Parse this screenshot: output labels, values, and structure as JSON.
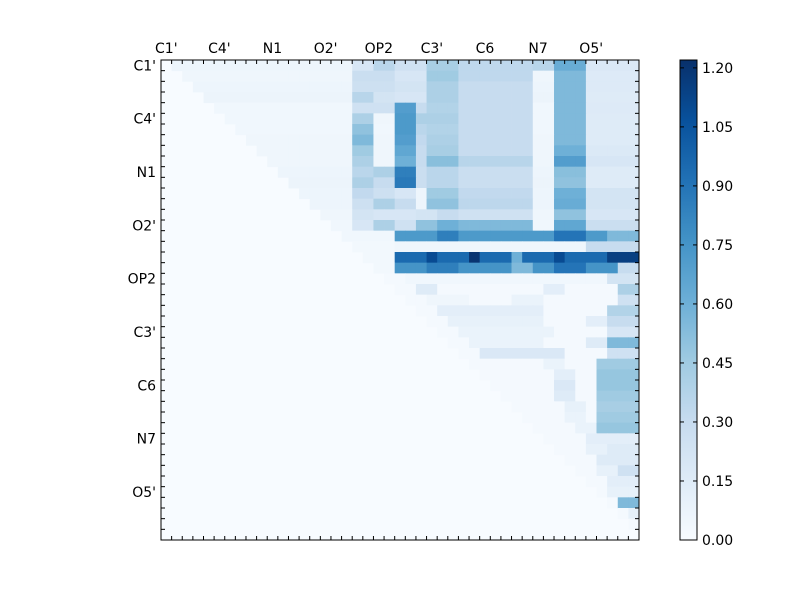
{
  "chart_data": {
    "type": "heatmap",
    "title": "",
    "xlabel": "",
    "ylabel": "",
    "n": 45,
    "x_ticklabels": [
      "C1'",
      "C4'",
      "N1",
      "O2'",
      "OP2",
      "C3'",
      "C6",
      "N7",
      "O5'"
    ],
    "y_ticklabels": [
      "C1'",
      "C4'",
      "N1",
      "O2'",
      "OP2",
      "C3'",
      "C6",
      "N7",
      "O5'"
    ],
    "tick_index_positions": [
      0.5,
      5.5,
      10.5,
      15.5,
      20.5,
      25.5,
      30.5,
      35.5,
      40.5
    ],
    "upper_triangle_only": true,
    "colormap": "Blues",
    "colormap_stops": [
      "#f7fbff",
      "#deebf7",
      "#c6dbef",
      "#9ecae1",
      "#6baed6",
      "#4292c6",
      "#2171b5",
      "#08519c",
      "#08306b"
    ],
    "vmin": 0.0,
    "vmax": 1.22,
    "colorbar": {
      "ticks": [
        0.0,
        0.15,
        0.3,
        0.45,
        0.6,
        0.75,
        0.9,
        1.05,
        1.2
      ],
      "ticklabels": [
        "0.00",
        "0.15",
        "0.30",
        "0.45",
        "0.60",
        "0.75",
        "0.90",
        "1.05",
        "1.20"
      ]
    },
    "row_profiles": [
      {
        "row": 0,
        "base": 0.06,
        "bands": [
          [
            18,
            20,
            0.2
          ],
          [
            20,
            22,
            0.35
          ],
          [
            22,
            25,
            0.25
          ],
          [
            25,
            28,
            0.42
          ],
          [
            28,
            35,
            0.33
          ],
          [
            35,
            37,
            0.36
          ],
          [
            37,
            40,
            0.62
          ],
          [
            40,
            45,
            0.18
          ]
        ]
      },
      {
        "row": 1,
        "base": 0.05,
        "bands": [
          [
            18,
            22,
            0.28
          ],
          [
            22,
            25,
            0.2
          ],
          [
            25,
            28,
            0.45
          ],
          [
            28,
            35,
            0.33
          ],
          [
            37,
            40,
            0.55
          ],
          [
            40,
            45,
            0.16
          ]
        ]
      },
      {
        "row": 2,
        "base": 0.06,
        "bands": [
          [
            18,
            22,
            0.26
          ],
          [
            22,
            25,
            0.22
          ],
          [
            25,
            28,
            0.4
          ],
          [
            28,
            35,
            0.3
          ],
          [
            37,
            40,
            0.55
          ],
          [
            40,
            45,
            0.16
          ]
        ]
      },
      {
        "row": 3,
        "base": 0.07,
        "bands": [
          [
            18,
            20,
            0.36
          ],
          [
            20,
            22,
            0.22
          ],
          [
            22,
            25,
            0.2
          ],
          [
            25,
            28,
            0.4
          ],
          [
            28,
            35,
            0.3
          ],
          [
            37,
            40,
            0.55
          ],
          [
            40,
            45,
            0.15
          ]
        ]
      },
      {
        "row": 4,
        "base": 0.04,
        "bands": [
          [
            18,
            22,
            0.25
          ],
          [
            22,
            24,
            0.7
          ],
          [
            24,
            25,
            0.3
          ],
          [
            25,
            28,
            0.38
          ],
          [
            28,
            35,
            0.3
          ],
          [
            37,
            40,
            0.55
          ],
          [
            40,
            45,
            0.16
          ]
        ]
      },
      {
        "row": 5,
        "base": 0.04,
        "bands": [
          [
            18,
            20,
            0.4
          ],
          [
            20,
            22,
            0.05
          ],
          [
            22,
            24,
            0.72
          ],
          [
            24,
            25,
            0.4
          ],
          [
            25,
            28,
            0.4
          ],
          [
            28,
            35,
            0.3
          ],
          [
            37,
            40,
            0.55
          ],
          [
            40,
            45,
            0.15
          ]
        ]
      },
      {
        "row": 6,
        "base": 0.04,
        "bands": [
          [
            18,
            20,
            0.5
          ],
          [
            22,
            24,
            0.72
          ],
          [
            24,
            25,
            0.35
          ],
          [
            25,
            28,
            0.38
          ],
          [
            28,
            35,
            0.3
          ],
          [
            37,
            40,
            0.55
          ],
          [
            40,
            45,
            0.15
          ]
        ]
      },
      {
        "row": 7,
        "base": 0.05,
        "bands": [
          [
            18,
            20,
            0.55
          ],
          [
            22,
            24,
            0.7
          ],
          [
            24,
            25,
            0.32
          ],
          [
            25,
            28,
            0.4
          ],
          [
            28,
            35,
            0.3
          ],
          [
            37,
            40,
            0.55
          ],
          [
            40,
            45,
            0.15
          ]
        ]
      },
      {
        "row": 8,
        "base": 0.05,
        "bands": [
          [
            18,
            20,
            0.45
          ],
          [
            22,
            24,
            0.65
          ],
          [
            24,
            25,
            0.3
          ],
          [
            25,
            28,
            0.42
          ],
          [
            28,
            35,
            0.3
          ],
          [
            37,
            40,
            0.6
          ],
          [
            40,
            45,
            0.17
          ]
        ]
      },
      {
        "row": 9,
        "base": 0.05,
        "bands": [
          [
            18,
            20,
            0.4
          ],
          [
            22,
            24,
            0.6
          ],
          [
            24,
            25,
            0.3
          ],
          [
            25,
            28,
            0.52
          ],
          [
            28,
            35,
            0.36
          ],
          [
            37,
            40,
            0.7
          ],
          [
            40,
            45,
            0.2
          ]
        ]
      },
      {
        "row": 10,
        "base": 0.06,
        "bands": [
          [
            18,
            20,
            0.35
          ],
          [
            20,
            22,
            0.4
          ],
          [
            22,
            24,
            0.85
          ],
          [
            24,
            25,
            0.28
          ],
          [
            25,
            28,
            0.35
          ],
          [
            28,
            35,
            0.28
          ],
          [
            37,
            40,
            0.52
          ],
          [
            40,
            45,
            0.15
          ]
        ]
      },
      {
        "row": 11,
        "base": 0.07,
        "bands": [
          [
            18,
            20,
            0.4
          ],
          [
            20,
            22,
            0.3
          ],
          [
            22,
            24,
            0.88
          ],
          [
            24,
            25,
            0.28
          ],
          [
            25,
            28,
            0.35
          ],
          [
            28,
            35,
            0.28
          ],
          [
            37,
            40,
            0.5
          ],
          [
            40,
            45,
            0.15
          ]
        ]
      },
      {
        "row": 12,
        "base": 0.06,
        "bands": [
          [
            18,
            20,
            0.32
          ],
          [
            20,
            22,
            0.26
          ],
          [
            22,
            24,
            0.2
          ],
          [
            25,
            28,
            0.45
          ],
          [
            28,
            35,
            0.32
          ],
          [
            37,
            40,
            0.6
          ],
          [
            40,
            45,
            0.22
          ]
        ]
      },
      {
        "row": 13,
        "base": 0.06,
        "bands": [
          [
            18,
            20,
            0.26
          ],
          [
            20,
            22,
            0.4
          ],
          [
            22,
            24,
            0.3
          ],
          [
            25,
            28,
            0.5
          ],
          [
            28,
            35,
            0.34
          ],
          [
            37,
            40,
            0.62
          ],
          [
            40,
            45,
            0.22
          ]
        ]
      },
      {
        "row": 14,
        "base": 0.05,
        "bands": [
          [
            18,
            20,
            0.22
          ],
          [
            20,
            22,
            0.2
          ],
          [
            22,
            24,
            0.2
          ],
          [
            24,
            26,
            0.22
          ],
          [
            26,
            28,
            0.3
          ],
          [
            28,
            35,
            0.25
          ],
          [
            37,
            40,
            0.5
          ],
          [
            40,
            45,
            0.2
          ]
        ]
      },
      {
        "row": 15,
        "base": 0.04,
        "bands": [
          [
            18,
            20,
            0.2
          ],
          [
            20,
            22,
            0.4
          ],
          [
            22,
            24,
            0.25
          ],
          [
            24,
            26,
            0.5
          ],
          [
            26,
            28,
            0.6
          ],
          [
            28,
            35,
            0.55
          ],
          [
            37,
            40,
            0.65
          ],
          [
            40,
            45,
            0.28
          ]
        ]
      },
      {
        "row": 16,
        "base": 0.04,
        "bands": [
          [
            22,
            24,
            0.05
          ],
          [
            22,
            45,
            0.72
          ],
          [
            26,
            28,
            0.85
          ],
          [
            37,
            40,
            0.9
          ],
          [
            42,
            45,
            0.55
          ]
        ]
      },
      {
        "row": 17,
        "base": 0.03,
        "bands": [
          [
            22,
            45,
            0.05
          ],
          [
            40,
            45,
            0.3
          ]
        ]
      },
      {
        "row": 18,
        "base": 0.03,
        "bands": [
          [
            22,
            45,
            0.95
          ],
          [
            25,
            26,
            1.1
          ],
          [
            29,
            30,
            1.2
          ],
          [
            33,
            34,
            0.6
          ],
          [
            37,
            38,
            1.1
          ],
          [
            42,
            45,
            1.15
          ]
        ]
      },
      {
        "row": 19,
        "base": 0.03,
        "bands": [
          [
            22,
            45,
            0.75
          ],
          [
            25,
            28,
            0.85
          ],
          [
            33,
            35,
            0.55
          ],
          [
            37,
            40,
            0.9
          ],
          [
            43,
            45,
            0.3
          ]
        ]
      },
      {
        "row": 20,
        "base": 0.02,
        "bands": [
          [
            23,
            45,
            0.04
          ],
          [
            42,
            45,
            0.22
          ]
        ]
      },
      {
        "row": 21,
        "base": 0.02,
        "bands": [
          [
            24,
            26,
            0.15
          ],
          [
            36,
            38,
            0.12
          ],
          [
            43,
            45,
            0.4
          ]
        ]
      },
      {
        "row": 22,
        "base": 0.02,
        "bands": [
          [
            25,
            29,
            0.05
          ],
          [
            33,
            36,
            0.08
          ],
          [
            43,
            45,
            0.25
          ]
        ]
      },
      {
        "row": 23,
        "base": 0.02,
        "bands": [
          [
            26,
            36,
            0.12
          ],
          [
            42,
            45,
            0.38
          ]
        ]
      },
      {
        "row": 24,
        "base": 0.02,
        "bands": [
          [
            27,
            36,
            0.1
          ],
          [
            40,
            43,
            0.12
          ],
          [
            42,
            45,
            0.3
          ]
        ]
      },
      {
        "row": 25,
        "base": 0.02,
        "bands": [
          [
            28,
            37,
            0.08
          ],
          [
            42,
            45,
            0.2
          ]
        ]
      },
      {
        "row": 26,
        "base": 0.02,
        "bands": [
          [
            29,
            36,
            0.08
          ],
          [
            40,
            42,
            0.15
          ],
          [
            42,
            45,
            0.55
          ]
        ]
      },
      {
        "row": 27,
        "base": 0.02,
        "bands": [
          [
            30,
            38,
            0.18
          ],
          [
            42,
            45,
            0.25
          ]
        ]
      },
      {
        "row": 28,
        "base": 0.02,
        "bands": [
          [
            36,
            38,
            0.08
          ],
          [
            41,
            45,
            0.45
          ]
        ]
      },
      {
        "row": 29,
        "base": 0.02,
        "bands": [
          [
            37,
            39,
            0.12
          ],
          [
            41,
            45,
            0.48
          ]
        ]
      },
      {
        "row": 30,
        "base": 0.02,
        "bands": [
          [
            37,
            39,
            0.18
          ],
          [
            41,
            45,
            0.48
          ]
        ]
      },
      {
        "row": 31,
        "base": 0.02,
        "bands": [
          [
            37,
            39,
            0.15
          ],
          [
            41,
            45,
            0.45
          ]
        ]
      },
      {
        "row": 32,
        "base": 0.02,
        "bands": [
          [
            38,
            40,
            0.1
          ],
          [
            41,
            45,
            0.42
          ]
        ]
      },
      {
        "row": 33,
        "base": 0.02,
        "bands": [
          [
            38,
            40,
            0.08
          ],
          [
            41,
            45,
            0.45
          ]
        ]
      },
      {
        "row": 34,
        "base": 0.02,
        "bands": [
          [
            39,
            41,
            0.08
          ],
          [
            41,
            45,
            0.48
          ]
        ]
      },
      {
        "row": 35,
        "base": 0.02,
        "bands": [
          [
            40,
            45,
            0.12
          ]
        ]
      },
      {
        "row": 36,
        "base": 0.02,
        "bands": [
          [
            40,
            42,
            0.1
          ],
          [
            42,
            45,
            0.15
          ]
        ]
      },
      {
        "row": 37,
        "base": 0.02,
        "bands": [
          [
            41,
            45,
            0.15
          ]
        ]
      },
      {
        "row": 38,
        "base": 0.02,
        "bands": [
          [
            41,
            43,
            0.1
          ],
          [
            43,
            45,
            0.25
          ]
        ]
      },
      {
        "row": 39,
        "base": 0.02,
        "bands": [
          [
            42,
            45,
            0.12
          ]
        ]
      },
      {
        "row": 40,
        "base": 0.02,
        "bands": [
          [
            42,
            45,
            0.1
          ]
        ]
      },
      {
        "row": 41,
        "base": 0.02,
        "bands": [
          [
            43,
            45,
            0.55
          ]
        ]
      },
      {
        "row": 42,
        "base": 0.02,
        "bands": [
          [
            44,
            45,
            0.1
          ]
        ]
      },
      {
        "row": 43,
        "base": 0.02,
        "bands": []
      },
      {
        "row": 44,
        "base": 0.02,
        "bands": []
      }
    ]
  }
}
